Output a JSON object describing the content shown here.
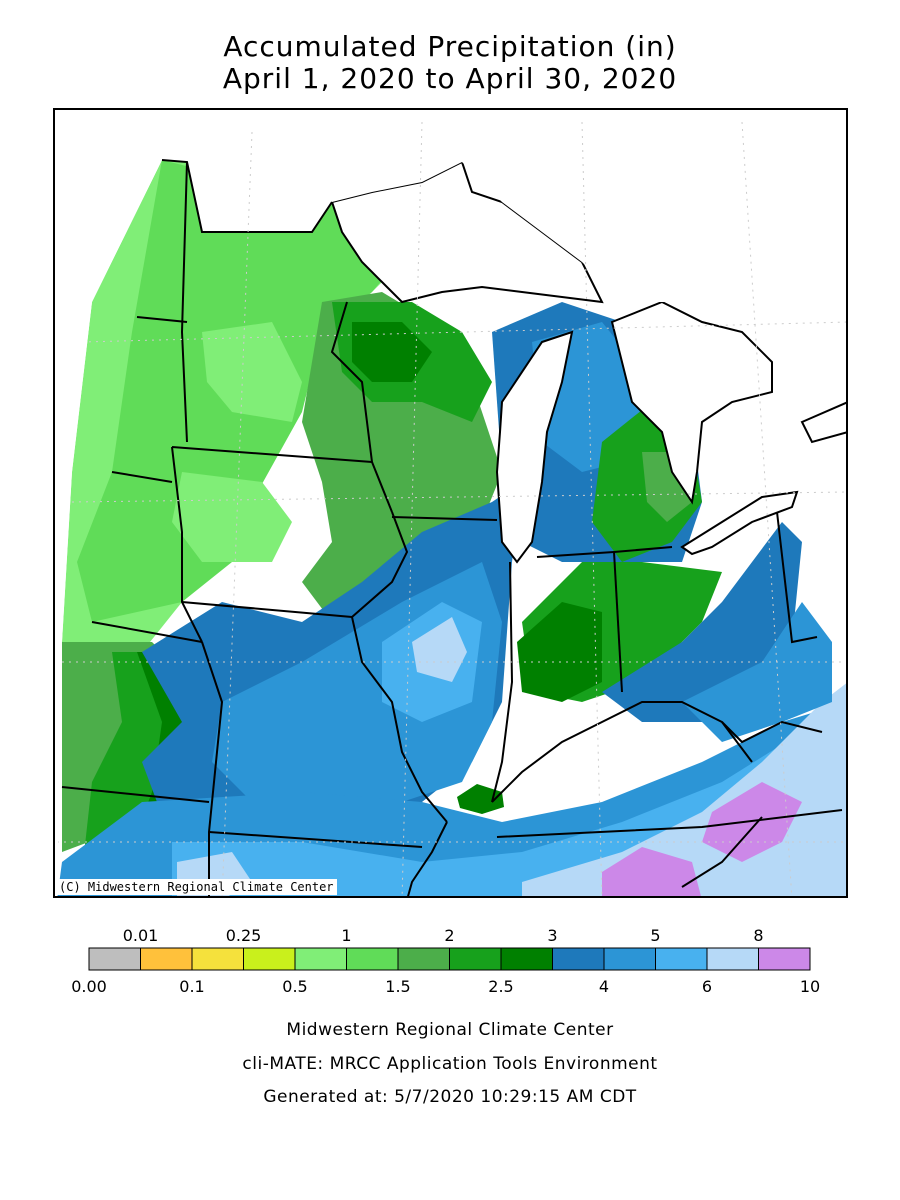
{
  "title": {
    "line1": "Accumulated Precipitation (in)",
    "line2": "April 1, 2020 to April 30, 2020"
  },
  "map": {
    "copyright": "(C) Midwestern Regional Climate Center",
    "colors": {
      "land_outline": "#000000",
      "water": "#ffffff",
      "grid": "#bbbbbb"
    }
  },
  "legend": {
    "bins": [
      {
        "color": "#bebebe"
      },
      {
        "color": "#ffc13b"
      },
      {
        "color": "#f5e13c"
      },
      {
        "color": "#c9f01c"
      },
      {
        "color": "#80ee77"
      },
      {
        "color": "#60dc58"
      },
      {
        "color": "#4cae4a"
      },
      {
        "color": "#17a11c"
      },
      {
        "color": "#008000"
      },
      {
        "color": "#1e79bb"
      },
      {
        "color": "#2c95d6"
      },
      {
        "color": "#48b1ef"
      },
      {
        "color": "#b6d9f7"
      },
      {
        "color": "#cc88e8"
      }
    ],
    "top_labels": [
      "0.01",
      "0.25",
      "1",
      "2",
      "3",
      "5",
      "8"
    ],
    "bottom_labels": [
      "0.00",
      "0.1",
      "0.5",
      "1.5",
      "2.5",
      "4",
      "6",
      "10"
    ]
  },
  "footer": {
    "line1": "Midwestern Regional Climate Center",
    "line2": "cli-MATE: MRCC Application Tools Environment",
    "line3": "Generated at: 5/7/2020 10:29:15 AM CDT"
  }
}
